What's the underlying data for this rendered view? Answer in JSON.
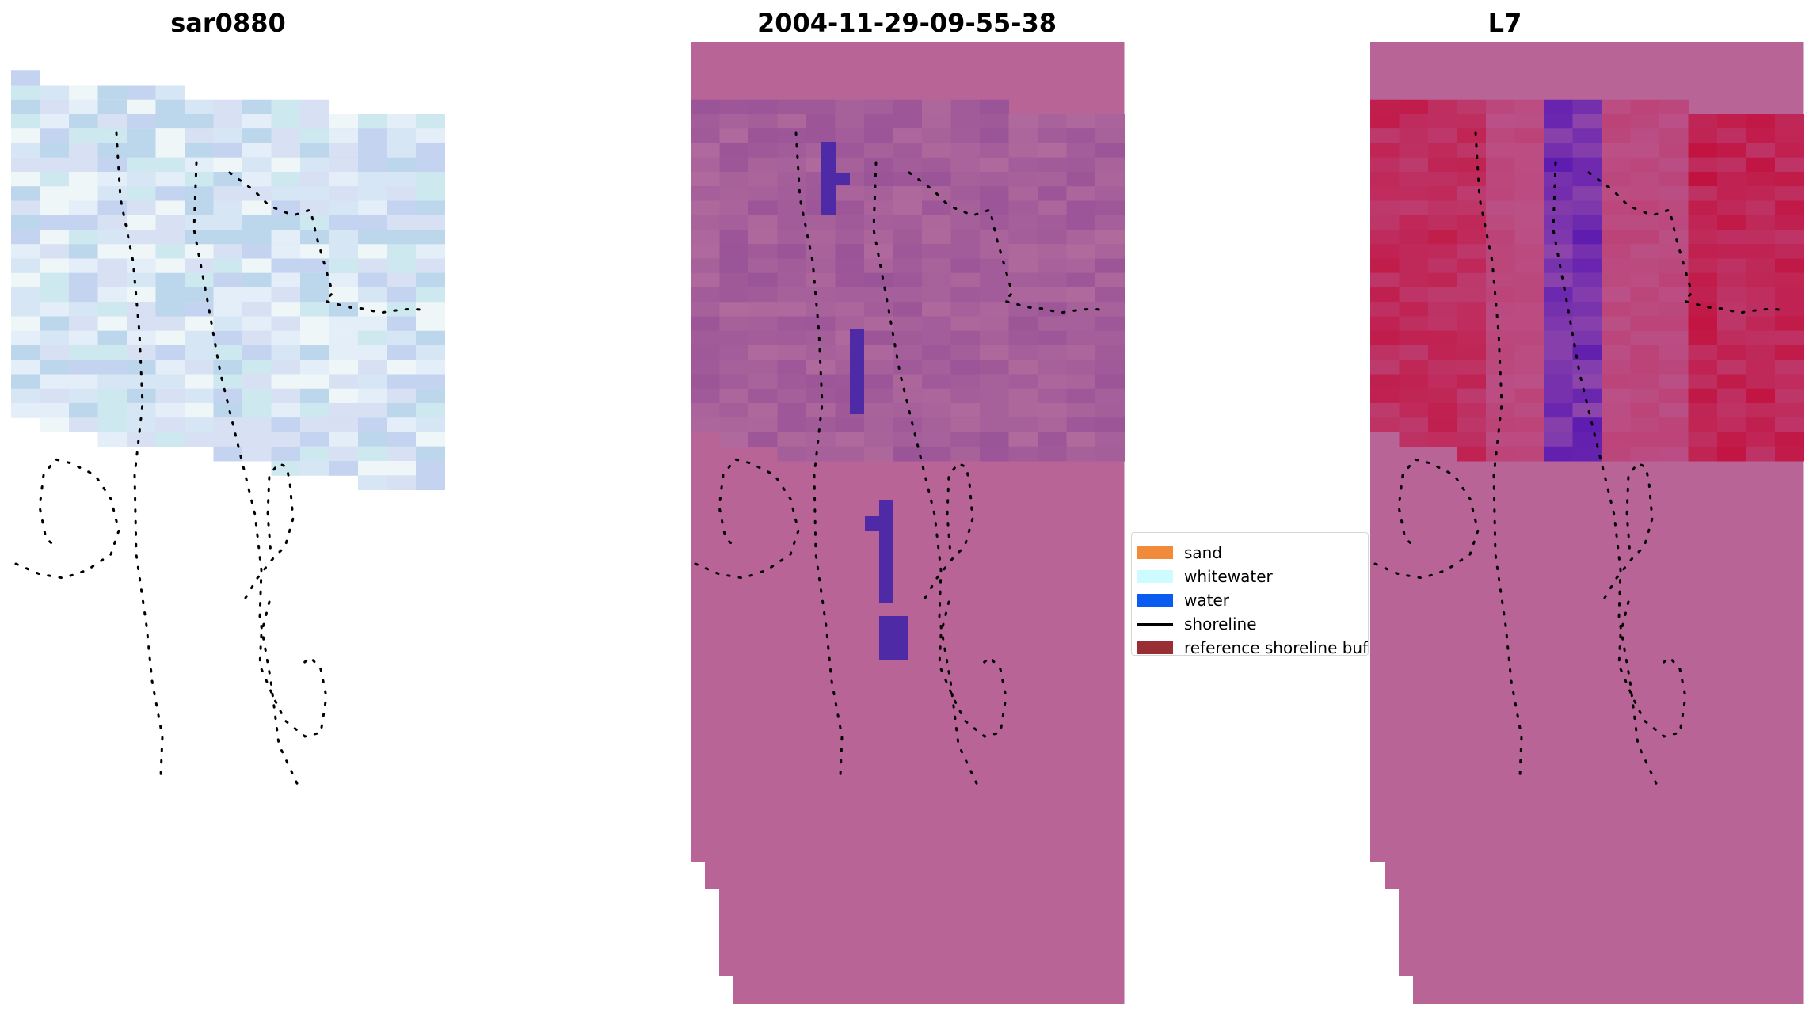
{
  "panels": [
    {
      "title": "sar0880",
      "colormap": "sar-rgb",
      "base_color": "#c8d8ec"
    },
    {
      "title": "2004-11-29-09-55-38",
      "colormap": "classified",
      "base_color": "#b86496",
      "water_class_color": "#4f2aa7"
    },
    {
      "title": "L7",
      "colormap": "ndwi",
      "base_color": "#b86496",
      "hot_color": "#c2123f",
      "cold_color": "#5c1ab0"
    }
  ],
  "legend": {
    "items": [
      {
        "label": "sand",
        "kind": "patch",
        "color": "#f28a3c"
      },
      {
        "label": "whitewater",
        "kind": "patch",
        "color": "#ccfcff"
      },
      {
        "label": "water",
        "kind": "patch",
        "color": "#0a5cf0"
      },
      {
        "label": "shoreline",
        "kind": "line",
        "color": "#000000"
      },
      {
        "label": "reference shoreline buffer",
        "kind": "patch",
        "color": "#992f35"
      }
    ]
  },
  "shoreline": {
    "color": "#000000",
    "style": "dotted"
  }
}
